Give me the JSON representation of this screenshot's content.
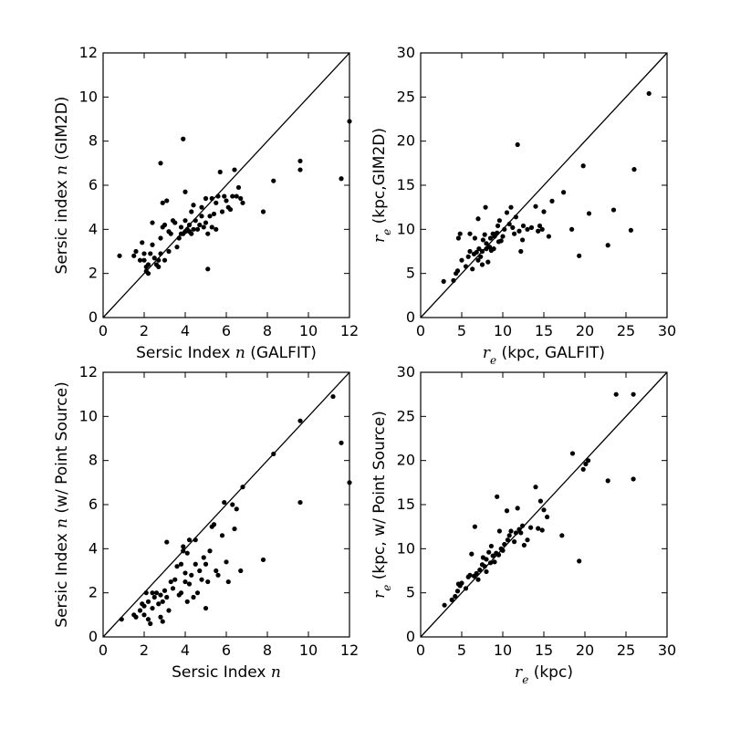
{
  "chart_data": [
    {
      "type": "scatter",
      "xlabel": {
        "prefix": "Sersic Index ",
        "math": "n",
        "suffix": " (GALFIT)"
      },
      "ylabel": {
        "prefix": "Sersic index ",
        "math": "n",
        "suffix": " (GIM2D)"
      },
      "xlim": [
        0,
        12
      ],
      "ylim": [
        0,
        12
      ],
      "xticks": [
        0,
        2,
        4,
        6,
        8,
        10,
        12
      ],
      "yticks": [
        0,
        2,
        4,
        6,
        8,
        10,
        12
      ],
      "identity_line": true,
      "points": [
        [
          0.8,
          2.8
        ],
        [
          1.5,
          2.8
        ],
        [
          1.6,
          3.0
        ],
        [
          1.8,
          2.6
        ],
        [
          1.9,
          3.4
        ],
        [
          2.0,
          2.6
        ],
        [
          2.0,
          2.9
        ],
        [
          2.1,
          2.1
        ],
        [
          2.1,
          2.3
        ],
        [
          2.2,
          2.0
        ],
        [
          2.2,
          2.4
        ],
        [
          2.3,
          2.9
        ],
        [
          2.4,
          3.3
        ],
        [
          2.4,
          4.3
        ],
        [
          2.5,
          2.7
        ],
        [
          2.6,
          2.4
        ],
        [
          2.7,
          2.6
        ],
        [
          2.7,
          2.3
        ],
        [
          2.8,
          2.9
        ],
        [
          2.8,
          3.6
        ],
        [
          2.8,
          7.0
        ],
        [
          2.9,
          4.1
        ],
        [
          2.9,
          5.2
        ],
        [
          3.0,
          2.6
        ],
        [
          3.0,
          4.2
        ],
        [
          3.1,
          5.3
        ],
        [
          3.2,
          3.0
        ],
        [
          3.2,
          3.9
        ],
        [
          3.3,
          3.8
        ],
        [
          3.4,
          4.4
        ],
        [
          3.5,
          4.3
        ],
        [
          3.6,
          3.2
        ],
        [
          3.7,
          3.6
        ],
        [
          3.8,
          3.8
        ],
        [
          3.8,
          4.1
        ],
        [
          3.9,
          3.8
        ],
        [
          3.9,
          8.1
        ],
        [
          4.0,
          3.9
        ],
        [
          4.0,
          4.4
        ],
        [
          4.0,
          5.7
        ],
        [
          4.1,
          4.0
        ],
        [
          4.2,
          3.9
        ],
        [
          4.2,
          4.2
        ],
        [
          4.3,
          3.8
        ],
        [
          4.3,
          4.8
        ],
        [
          4.4,
          4.0
        ],
        [
          4.4,
          5.1
        ],
        [
          4.5,
          4.4
        ],
        [
          4.6,
          4.0
        ],
        [
          4.7,
          4.2
        ],
        [
          4.8,
          4.6
        ],
        [
          4.8,
          5.0
        ],
        [
          4.9,
          4.1
        ],
        [
          5.0,
          4.3
        ],
        [
          5.0,
          5.4
        ],
        [
          5.1,
          3.8
        ],
        [
          5.1,
          2.2
        ],
        [
          5.2,
          4.6
        ],
        [
          5.3,
          5.4
        ],
        [
          5.3,
          4.1
        ],
        [
          5.4,
          4.7
        ],
        [
          5.5,
          4.0
        ],
        [
          5.5,
          5.2
        ],
        [
          5.6,
          5.5
        ],
        [
          5.7,
          6.6
        ],
        [
          5.8,
          4.8
        ],
        [
          5.9,
          5.5
        ],
        [
          6.0,
          5.3
        ],
        [
          6.1,
          5.0
        ],
        [
          6.2,
          4.9
        ],
        [
          6.3,
          5.5
        ],
        [
          6.4,
          6.7
        ],
        [
          6.5,
          5.5
        ],
        [
          6.6,
          5.9
        ],
        [
          6.7,
          5.4
        ],
        [
          6.8,
          5.2
        ],
        [
          7.8,
          4.8
        ],
        [
          8.3,
          6.2
        ],
        [
          9.6,
          7.1
        ],
        [
          9.6,
          6.7
        ],
        [
          11.6,
          6.3
        ],
        [
          12.0,
          8.9
        ]
      ]
    },
    {
      "type": "scatter",
      "xlabel": {
        "prefix": "",
        "math": "r",
        "sub": "e",
        "suffix": " (kpc, GALFIT)"
      },
      "ylabel": {
        "prefix": "",
        "math": "r",
        "sub": "e",
        "suffix": " (kpc,GIM2D)"
      },
      "xlim": [
        0,
        30
      ],
      "ylim": [
        0,
        30
      ],
      "xticks": [
        0,
        5,
        10,
        15,
        20,
        25,
        30
      ],
      "yticks": [
        0,
        5,
        10,
        15,
        20,
        25,
        30
      ],
      "identity_line": true,
      "points": [
        [
          2.8,
          4.1
        ],
        [
          4.0,
          4.2
        ],
        [
          4.3,
          5.0
        ],
        [
          4.5,
          5.3
        ],
        [
          4.6,
          9.0
        ],
        [
          4.8,
          9.5
        ],
        [
          5.0,
          6.5
        ],
        [
          5.5,
          5.8
        ],
        [
          5.8,
          6.9
        ],
        [
          6.0,
          7.5
        ],
        [
          6.0,
          9.5
        ],
        [
          6.3,
          5.5
        ],
        [
          6.5,
          7.2
        ],
        [
          6.6,
          9.0
        ],
        [
          6.8,
          7.4
        ],
        [
          7.0,
          6.5
        ],
        [
          7.0,
          11.2
        ],
        [
          7.1,
          7.8
        ],
        [
          7.3,
          6.9
        ],
        [
          7.5,
          6.0
        ],
        [
          7.5,
          7.5
        ],
        [
          7.6,
          8.8
        ],
        [
          7.8,
          9.4
        ],
        [
          7.9,
          12.5
        ],
        [
          8.0,
          7.8
        ],
        [
          8.0,
          8.4
        ],
        [
          8.2,
          6.3
        ],
        [
          8.4,
          8.0
        ],
        [
          8.5,
          9.0
        ],
        [
          8.6,
          7.6
        ],
        [
          8.8,
          9.5
        ],
        [
          8.9,
          7.8
        ],
        [
          9.0,
          9.2
        ],
        [
          9.3,
          9.6
        ],
        [
          9.4,
          10.4
        ],
        [
          9.5,
          8.6
        ],
        [
          9.6,
          11.0
        ],
        [
          9.8,
          8.7
        ],
        [
          10.0,
          9.2
        ],
        [
          10.2,
          10.0
        ],
        [
          10.5,
          11.9
        ],
        [
          10.8,
          10.6
        ],
        [
          11.0,
          12.5
        ],
        [
          11.2,
          10.2
        ],
        [
          11.4,
          9.5
        ],
        [
          11.6,
          11.4
        ],
        [
          11.8,
          19.6
        ],
        [
          12.0,
          9.8
        ],
        [
          12.2,
          7.5
        ],
        [
          12.4,
          8.8
        ],
        [
          12.5,
          10.4
        ],
        [
          13.0,
          10.0
        ],
        [
          13.5,
          10.2
        ],
        [
          14.0,
          12.6
        ],
        [
          14.3,
          9.8
        ],
        [
          14.5,
          10.4
        ],
        [
          14.8,
          10.0
        ],
        [
          15.0,
          12.0
        ],
        [
          15.6,
          9.2
        ],
        [
          16.0,
          13.2
        ],
        [
          17.4,
          14.2
        ],
        [
          18.4,
          10.0
        ],
        [
          19.3,
          7.0
        ],
        [
          19.8,
          17.2
        ],
        [
          20.5,
          11.8
        ],
        [
          22.8,
          8.2
        ],
        [
          23.5,
          12.2
        ],
        [
          25.6,
          9.9
        ],
        [
          26.0,
          16.8
        ],
        [
          27.8,
          25.4
        ]
      ]
    },
    {
      "type": "scatter",
      "xlabel": {
        "prefix": "Sersic Index ",
        "math": "n",
        "suffix": ""
      },
      "ylabel": {
        "prefix": "Sersic Index ",
        "math": "n",
        "suffix": " (w/ Point Source)"
      },
      "xlim": [
        0,
        12
      ],
      "ylim": [
        0,
        12
      ],
      "xticks": [
        0,
        2,
        4,
        6,
        8,
        10,
        12
      ],
      "yticks": [
        0,
        2,
        4,
        6,
        8,
        10,
        12
      ],
      "identity_line": true,
      "points": [
        [
          0.9,
          0.8
        ],
        [
          1.5,
          1.0
        ],
        [
          1.6,
          0.9
        ],
        [
          1.8,
          1.2
        ],
        [
          1.9,
          1.5
        ],
        [
          2.0,
          1.0
        ],
        [
          2.0,
          1.4
        ],
        [
          2.1,
          2.0
        ],
        [
          2.2,
          0.8
        ],
        [
          2.2,
          1.6
        ],
        [
          2.3,
          0.6
        ],
        [
          2.4,
          1.3
        ],
        [
          2.4,
          2.0
        ],
        [
          2.5,
          1.8
        ],
        [
          2.6,
          2.0
        ],
        [
          2.7,
          1.5
        ],
        [
          2.8,
          0.9
        ],
        [
          2.8,
          1.9
        ],
        [
          2.9,
          0.7
        ],
        [
          2.9,
          1.6
        ],
        [
          3.0,
          2.1
        ],
        [
          3.1,
          1.8
        ],
        [
          3.1,
          4.3
        ],
        [
          3.2,
          1.2
        ],
        [
          3.3,
          2.5
        ],
        [
          3.4,
          2.2
        ],
        [
          3.5,
          2.6
        ],
        [
          3.6,
          3.2
        ],
        [
          3.7,
          1.9
        ],
        [
          3.8,
          2.0
        ],
        [
          3.8,
          3.3
        ],
        [
          3.9,
          3.9
        ],
        [
          3.9,
          4.1
        ],
        [
          4.0,
          2.5
        ],
        [
          4.0,
          2.9
        ],
        [
          4.1,
          1.6
        ],
        [
          4.1,
          3.8
        ],
        [
          4.2,
          2.4
        ],
        [
          4.2,
          4.4
        ],
        [
          4.3,
          2.8
        ],
        [
          4.4,
          1.8
        ],
        [
          4.5,
          3.3
        ],
        [
          4.5,
          4.4
        ],
        [
          4.6,
          2.0
        ],
        [
          4.7,
          3.0
        ],
        [
          4.8,
          2.6
        ],
        [
          4.9,
          3.6
        ],
        [
          5.0,
          1.3
        ],
        [
          5.0,
          3.3
        ],
        [
          5.1,
          2.5
        ],
        [
          5.2,
          3.9
        ],
        [
          5.3,
          5.0
        ],
        [
          5.4,
          5.1
        ],
        [
          5.5,
          3.0
        ],
        [
          5.6,
          2.8
        ],
        [
          5.8,
          4.6
        ],
        [
          5.9,
          6.1
        ],
        [
          6.0,
          3.4
        ],
        [
          6.1,
          2.5
        ],
        [
          6.3,
          6.0
        ],
        [
          6.4,
          4.9
        ],
        [
          6.5,
          5.8
        ],
        [
          6.7,
          3.0
        ],
        [
          6.8,
          6.8
        ],
        [
          7.8,
          3.5
        ],
        [
          8.3,
          8.3
        ],
        [
          9.6,
          9.8
        ],
        [
          9.6,
          6.1
        ],
        [
          11.2,
          10.9
        ],
        [
          11.6,
          8.8
        ],
        [
          12.0,
          7.0
        ]
      ]
    },
    {
      "type": "scatter",
      "xlabel": {
        "prefix": "",
        "math": "r",
        "sub": "e",
        "suffix": " (kpc)"
      },
      "ylabel": {
        "prefix": "",
        "math": "r",
        "sub": "e",
        "suffix": " (kpc, w/ Point Source)"
      },
      "xlim": [
        0,
        30
      ],
      "ylim": [
        0,
        30
      ],
      "xticks": [
        0,
        5,
        10,
        15,
        20,
        25,
        30
      ],
      "yticks": [
        0,
        5,
        10,
        15,
        20,
        25,
        30
      ],
      "identity_line": true,
      "points": [
        [
          2.9,
          3.6
        ],
        [
          3.8,
          4.2
        ],
        [
          4.2,
          4.6
        ],
        [
          4.5,
          5.2
        ],
        [
          4.6,
          6.0
        ],
        [
          4.8,
          5.8
        ],
        [
          5.0,
          6.1
        ],
        [
          5.5,
          5.5
        ],
        [
          5.8,
          6.8
        ],
        [
          6.0,
          7.0
        ],
        [
          6.2,
          9.4
        ],
        [
          6.5,
          6.9
        ],
        [
          6.6,
          12.5
        ],
        [
          6.8,
          7.2
        ],
        [
          7.0,
          6.5
        ],
        [
          7.2,
          7.6
        ],
        [
          7.5,
          8.2
        ],
        [
          7.6,
          9.0
        ],
        [
          7.8,
          8.0
        ],
        [
          8.0,
          7.4
        ],
        [
          8.0,
          8.8
        ],
        [
          8.3,
          9.6
        ],
        [
          8.5,
          8.4
        ],
        [
          8.6,
          10.3
        ],
        [
          8.8,
          9.2
        ],
        [
          9.0,
          8.5
        ],
        [
          9.2,
          9.5
        ],
        [
          9.3,
          15.9
        ],
        [
          9.5,
          9.3
        ],
        [
          9.6,
          12.0
        ],
        [
          9.8,
          10.0
        ],
        [
          10.0,
          9.8
        ],
        [
          10.2,
          10.5
        ],
        [
          10.5,
          14.3
        ],
        [
          10.6,
          11.0
        ],
        [
          10.8,
          11.5
        ],
        [
          11.0,
          12.0
        ],
        [
          11.4,
          10.8
        ],
        [
          11.6,
          11.8
        ],
        [
          11.8,
          14.6
        ],
        [
          12.0,
          12.2
        ],
        [
          12.2,
          11.8
        ],
        [
          12.4,
          12.6
        ],
        [
          12.6,
          10.4
        ],
        [
          13.0,
          11.0
        ],
        [
          13.4,
          12.4
        ],
        [
          14.0,
          17.0
        ],
        [
          14.3,
          12.3
        ],
        [
          14.6,
          15.4
        ],
        [
          14.8,
          12.1
        ],
        [
          15.0,
          14.4
        ],
        [
          15.4,
          13.6
        ],
        [
          17.2,
          11.5
        ],
        [
          18.5,
          20.8
        ],
        [
          19.3,
          8.6
        ],
        [
          19.8,
          19.0
        ],
        [
          20.1,
          19.6
        ],
        [
          20.4,
          20.0
        ],
        [
          22.8,
          17.7
        ],
        [
          23.8,
          27.5
        ],
        [
          25.9,
          17.9
        ],
        [
          25.9,
          27.5
        ]
      ]
    }
  ]
}
